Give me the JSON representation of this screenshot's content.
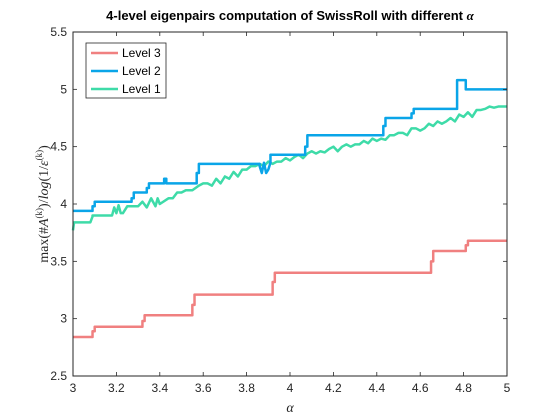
{
  "chart_data": {
    "type": "line",
    "title": "4-level eigenpairs computation of SwissRoll with different",
    "title_symbol": "α",
    "xlabel": "α",
    "ylabel": "max(#Â(k))/log(1/ε(k))",
    "ylabel_parts": {
      "lead": "max(#",
      "var": "A",
      "sup1": "(k)",
      "mid": ")/",
      "log": "log",
      "paren": "(1/",
      "eps": "ε",
      "sup2": "(k)",
      "close": ")"
    },
    "xlim": [
      3,
      5
    ],
    "ylim": [
      2.5,
      5.5
    ],
    "xticks": [
      "3",
      "3.2",
      "3.4",
      "3.6",
      "3.8",
      "4",
      "4.2",
      "4.4",
      "4.6",
      "4.8",
      "5"
    ],
    "yticks": [
      "2.5",
      "3",
      "3.5",
      "4",
      "4.5",
      "5",
      "5.5"
    ],
    "grid": false,
    "legend_position": "top-left",
    "series": [
      {
        "name": "Level 3",
        "color": "#F08080",
        "x": [
          3.0,
          3.09,
          3.09,
          3.1,
          3.1,
          3.32,
          3.32,
          3.33,
          3.33,
          3.55,
          3.55,
          3.56,
          3.56,
          3.92,
          3.92,
          3.93,
          3.93,
          4.65,
          4.65,
          4.66,
          4.66,
          4.81,
          4.81,
          4.82,
          4.82,
          5.0
        ],
        "values": [
          2.84,
          2.84,
          2.89,
          2.89,
          2.93,
          2.93,
          2.98,
          2.98,
          3.03,
          3.03,
          3.12,
          3.12,
          3.21,
          3.21,
          3.32,
          3.32,
          3.4,
          3.4,
          3.5,
          3.5,
          3.59,
          3.59,
          3.64,
          3.64,
          3.68,
          3.68
        ]
      },
      {
        "name": "Level 2",
        "color": "#0AA5E8",
        "x": [
          3.0,
          3.09,
          3.09,
          3.1,
          3.1,
          3.27,
          3.27,
          3.28,
          3.28,
          3.34,
          3.34,
          3.35,
          3.35,
          3.42,
          3.42,
          3.43,
          3.43,
          3.57,
          3.57,
          3.58,
          3.58,
          3.86,
          3.86,
          3.87,
          3.88,
          3.89,
          3.9,
          3.91,
          3.91,
          4.07,
          4.07,
          4.08,
          4.08,
          4.43,
          4.43,
          4.44,
          4.44,
          4.56,
          4.56,
          4.57,
          4.57,
          4.77,
          4.77,
          4.78,
          4.81,
          4.81,
          5.0
        ],
        "values": [
          3.94,
          3.94,
          3.98,
          3.98,
          4.02,
          4.02,
          4.05,
          4.05,
          4.1,
          4.1,
          4.14,
          4.14,
          4.18,
          4.18,
          4.22,
          4.22,
          4.18,
          4.18,
          4.27,
          4.27,
          4.35,
          4.35,
          4.33,
          4.27,
          4.36,
          4.27,
          4.3,
          4.36,
          4.43,
          4.43,
          4.5,
          4.5,
          4.6,
          4.6,
          4.68,
          4.68,
          4.75,
          4.75,
          4.79,
          4.79,
          4.83,
          4.83,
          5.08,
          5.08,
          5.08,
          5.0,
          5.0
        ]
      },
      {
        "name": "Level 1",
        "color": "#3EDBA8",
        "x": [
          3.0,
          3.005,
          3.01,
          3.08,
          3.09,
          3.09,
          3.18,
          3.19,
          3.2,
          3.21,
          3.22,
          3.23,
          3.25,
          3.3,
          3.32,
          3.34,
          3.36,
          3.38,
          3.39,
          3.4,
          3.44,
          3.46,
          3.48,
          3.5,
          3.52,
          3.55,
          3.58,
          3.6,
          3.62,
          3.64,
          3.66,
          3.68,
          3.7,
          3.72,
          3.74,
          3.76,
          3.78,
          3.8,
          3.82,
          3.84,
          3.86,
          3.88,
          3.9,
          3.92,
          3.94,
          3.96,
          3.98,
          4.0,
          4.02,
          4.04,
          4.06,
          4.08,
          4.1,
          4.12,
          4.14,
          4.16,
          4.18,
          4.2,
          4.22,
          4.24,
          4.26,
          4.28,
          4.3,
          4.32,
          4.34,
          4.36,
          4.38,
          4.4,
          4.42,
          4.44,
          4.46,
          4.48,
          4.5,
          4.52,
          4.54,
          4.56,
          4.58,
          4.6,
          4.62,
          4.64,
          4.66,
          4.68,
          4.7,
          4.72,
          4.74,
          4.76,
          4.78,
          4.8,
          4.82,
          4.84,
          4.86,
          4.88,
          4.9,
          4.92,
          4.94,
          4.96,
          4.98,
          5.0
        ],
        "values": [
          3.77,
          3.84,
          3.84,
          3.84,
          3.89,
          3.9,
          3.9,
          3.97,
          3.92,
          3.99,
          3.92,
          3.92,
          3.98,
          3.98,
          4.02,
          3.97,
          4.05,
          3.98,
          4.05,
          4.0,
          4.05,
          4.05,
          4.1,
          4.1,
          4.12,
          4.12,
          4.16,
          4.18,
          4.18,
          4.16,
          4.22,
          4.18,
          4.24,
          4.22,
          4.28,
          4.24,
          4.3,
          4.3,
          4.33,
          4.33,
          4.35,
          4.33,
          4.37,
          4.35,
          4.37,
          4.37,
          4.4,
          4.38,
          4.41,
          4.43,
          4.4,
          4.44,
          4.46,
          4.44,
          4.46,
          4.45,
          4.48,
          4.5,
          4.46,
          4.5,
          4.52,
          4.5,
          4.52,
          4.52,
          4.55,
          4.53,
          4.57,
          4.55,
          4.57,
          4.56,
          4.6,
          4.6,
          4.62,
          4.62,
          4.6,
          4.66,
          4.66,
          4.64,
          4.66,
          4.7,
          4.68,
          4.72,
          4.7,
          4.72,
          4.75,
          4.72,
          4.78,
          4.76,
          4.8,
          4.76,
          4.82,
          4.82,
          4.83,
          4.85,
          4.84,
          4.85,
          4.85,
          4.85
        ]
      }
    ]
  }
}
